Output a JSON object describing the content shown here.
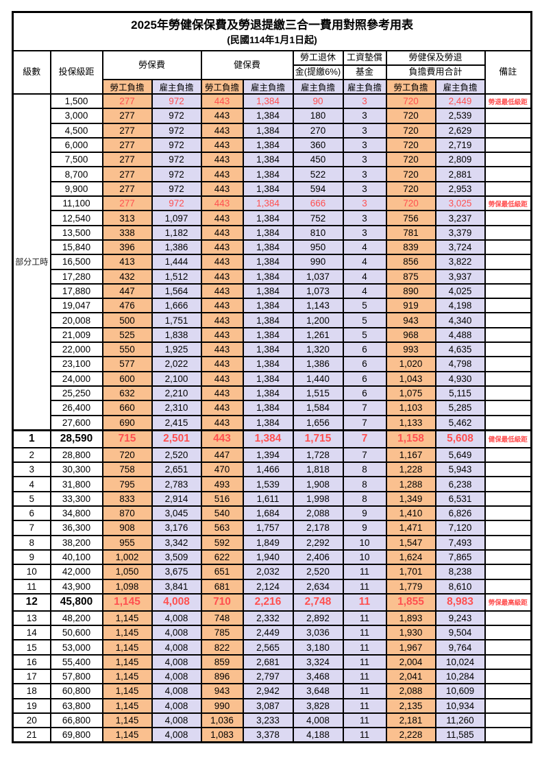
{
  "title": "2025年勞健保保費及勞退提繳三合一費用對照參考用表",
  "subtitle": "(民國114年1月1日起)",
  "header": {
    "level": "級數",
    "bracket": "投保級距",
    "labor_fee": "勞保費",
    "health_fee": "健保費",
    "pension_line1": "勞工退休",
    "pension_line2": "金(提繳6%)",
    "wage_fund_line1": "工資墊償",
    "wage_fund_line2": "基金",
    "total_line1": "勞健保及勞退",
    "total_line2": "負擔費用合計",
    "remark": "備註",
    "worker": "勞工負擔",
    "employer": "雇主負擔"
  },
  "part_time_label": "部分工時",
  "colors": {
    "worker_fill": "#FAC08F",
    "employer_fill": "#DCD9F2",
    "highlight_text": "#FF5050",
    "border": "#000000"
  },
  "rows": [
    {
      "level": "",
      "bracket": "1,500",
      "lw": "277",
      "le": "972",
      "hw": "443",
      "he": "1,384",
      "pe": "90",
      "wf": "3",
      "tw": "720",
      "te": "2,449",
      "remark": "勞退最低級距",
      "red": true,
      "bold": false
    },
    {
      "level": "",
      "bracket": "3,000",
      "lw": "277",
      "le": "972",
      "hw": "443",
      "he": "1,384",
      "pe": "180",
      "wf": "3",
      "tw": "720",
      "te": "2,539",
      "remark": "",
      "red": false,
      "bold": false
    },
    {
      "level": "",
      "bracket": "4,500",
      "lw": "277",
      "le": "972",
      "hw": "443",
      "he": "1,384",
      "pe": "270",
      "wf": "3",
      "tw": "720",
      "te": "2,629",
      "remark": "",
      "red": false,
      "bold": false
    },
    {
      "level": "",
      "bracket": "6,000",
      "lw": "277",
      "le": "972",
      "hw": "443",
      "he": "1,384",
      "pe": "360",
      "wf": "3",
      "tw": "720",
      "te": "2,719",
      "remark": "",
      "red": false,
      "bold": false
    },
    {
      "level": "",
      "bracket": "7,500",
      "lw": "277",
      "le": "972",
      "hw": "443",
      "he": "1,384",
      "pe": "450",
      "wf": "3",
      "tw": "720",
      "te": "2,809",
      "remark": "",
      "red": false,
      "bold": false
    },
    {
      "level": "",
      "bracket": "8,700",
      "lw": "277",
      "le": "972",
      "hw": "443",
      "he": "1,384",
      "pe": "522",
      "wf": "3",
      "tw": "720",
      "te": "2,881",
      "remark": "",
      "red": false,
      "bold": false
    },
    {
      "level": "",
      "bracket": "9,900",
      "lw": "277",
      "le": "972",
      "hw": "443",
      "he": "1,384",
      "pe": "594",
      "wf": "3",
      "tw": "720",
      "te": "2,953",
      "remark": "",
      "red": false,
      "bold": false
    },
    {
      "level": "",
      "bracket": "11,100",
      "lw": "277",
      "le": "972",
      "hw": "443",
      "he": "1,384",
      "pe": "666",
      "wf": "3",
      "tw": "720",
      "te": "3,025",
      "remark": "勞保最低級距",
      "red": true,
      "bold": false
    },
    {
      "level": "",
      "bracket": "12,540",
      "lw": "313",
      "le": "1,097",
      "hw": "443",
      "he": "1,384",
      "pe": "752",
      "wf": "3",
      "tw": "756",
      "te": "3,237",
      "remark": "",
      "red": false,
      "bold": false
    },
    {
      "level": "",
      "bracket": "13,500",
      "lw": "338",
      "le": "1,182",
      "hw": "443",
      "he": "1,384",
      "pe": "810",
      "wf": "3",
      "tw": "781",
      "te": "3,379",
      "remark": "",
      "red": false,
      "bold": false
    },
    {
      "level": "",
      "bracket": "15,840",
      "lw": "396",
      "le": "1,386",
      "hw": "443",
      "he": "1,384",
      "pe": "950",
      "wf": "4",
      "tw": "839",
      "te": "3,724",
      "remark": "",
      "red": false,
      "bold": false
    },
    {
      "level": "",
      "bracket": "16,500",
      "lw": "413",
      "le": "1,444",
      "hw": "443",
      "he": "1,384",
      "pe": "990",
      "wf": "4",
      "tw": "856",
      "te": "3,822",
      "remark": "",
      "red": false,
      "bold": false
    },
    {
      "level": "",
      "bracket": "17,280",
      "lw": "432",
      "le": "1,512",
      "hw": "443",
      "he": "1,384",
      "pe": "1,037",
      "wf": "4",
      "tw": "875",
      "te": "3,937",
      "remark": "",
      "red": false,
      "bold": false
    },
    {
      "level": "",
      "bracket": "17,880",
      "lw": "447",
      "le": "1,564",
      "hw": "443",
      "he": "1,384",
      "pe": "1,073",
      "wf": "4",
      "tw": "890",
      "te": "4,025",
      "remark": "",
      "red": false,
      "bold": false
    },
    {
      "level": "",
      "bracket": "19,047",
      "lw": "476",
      "le": "1,666",
      "hw": "443",
      "he": "1,384",
      "pe": "1,143",
      "wf": "5",
      "tw": "919",
      "te": "4,198",
      "remark": "",
      "red": false,
      "bold": false
    },
    {
      "level": "",
      "bracket": "20,008",
      "lw": "500",
      "le": "1,751",
      "hw": "443",
      "he": "1,384",
      "pe": "1,200",
      "wf": "5",
      "tw": "943",
      "te": "4,340",
      "remark": "",
      "red": false,
      "bold": false
    },
    {
      "level": "",
      "bracket": "21,009",
      "lw": "525",
      "le": "1,838",
      "hw": "443",
      "he": "1,384",
      "pe": "1,261",
      "wf": "5",
      "tw": "968",
      "te": "4,488",
      "remark": "",
      "red": false,
      "bold": false
    },
    {
      "level": "",
      "bracket": "22,000",
      "lw": "550",
      "le": "1,925",
      "hw": "443",
      "he": "1,384",
      "pe": "1,320",
      "wf": "6",
      "tw": "993",
      "te": "4,635",
      "remark": "",
      "red": false,
      "bold": false
    },
    {
      "level": "",
      "bracket": "23,100",
      "lw": "577",
      "le": "2,022",
      "hw": "443",
      "he": "1,384",
      "pe": "1,386",
      "wf": "6",
      "tw": "1,020",
      "te": "4,798",
      "remark": "",
      "red": false,
      "bold": false
    },
    {
      "level": "",
      "bracket": "24,000",
      "lw": "600",
      "le": "2,100",
      "hw": "443",
      "he": "1,384",
      "pe": "1,440",
      "wf": "6",
      "tw": "1,043",
      "te": "4,930",
      "remark": "",
      "red": false,
      "bold": false
    },
    {
      "level": "",
      "bracket": "25,250",
      "lw": "632",
      "le": "2,210",
      "hw": "443",
      "he": "1,384",
      "pe": "1,515",
      "wf": "6",
      "tw": "1,075",
      "te": "5,115",
      "remark": "",
      "red": false,
      "bold": false
    },
    {
      "level": "",
      "bracket": "26,400",
      "lw": "660",
      "le": "2,310",
      "hw": "443",
      "he": "1,384",
      "pe": "1,584",
      "wf": "7",
      "tw": "1,103",
      "te": "5,285",
      "remark": "",
      "red": false,
      "bold": false
    },
    {
      "level": "",
      "bracket": "27,600",
      "lw": "690",
      "le": "2,415",
      "hw": "443",
      "he": "1,384",
      "pe": "1,656",
      "wf": "7",
      "tw": "1,133",
      "te": "5,462",
      "remark": "",
      "red": false,
      "bold": false
    },
    {
      "level": "1",
      "bracket": "28,590",
      "lw": "715",
      "le": "2,501",
      "hw": "443",
      "he": "1,384",
      "pe": "1,715",
      "wf": "7",
      "tw": "1,158",
      "te": "5,608",
      "remark": "健保最低級距",
      "red": true,
      "bold": true
    },
    {
      "level": "2",
      "bracket": "28,800",
      "lw": "720",
      "le": "2,520",
      "hw": "447",
      "he": "1,394",
      "pe": "1,728",
      "wf": "7",
      "tw": "1,167",
      "te": "5,649",
      "remark": "",
      "red": false,
      "bold": false
    },
    {
      "level": "3",
      "bracket": "30,300",
      "lw": "758",
      "le": "2,651",
      "hw": "470",
      "he": "1,466",
      "pe": "1,818",
      "wf": "8",
      "tw": "1,228",
      "te": "5,943",
      "remark": "",
      "red": false,
      "bold": false
    },
    {
      "level": "4",
      "bracket": "31,800",
      "lw": "795",
      "le": "2,783",
      "hw": "493",
      "he": "1,539",
      "pe": "1,908",
      "wf": "8",
      "tw": "1,288",
      "te": "6,238",
      "remark": "",
      "red": false,
      "bold": false
    },
    {
      "level": "5",
      "bracket": "33,300",
      "lw": "833",
      "le": "2,914",
      "hw": "516",
      "he": "1,611",
      "pe": "1,998",
      "wf": "8",
      "tw": "1,349",
      "te": "6,531",
      "remark": "",
      "red": false,
      "bold": false
    },
    {
      "level": "6",
      "bracket": "34,800",
      "lw": "870",
      "le": "3,045",
      "hw": "540",
      "he": "1,684",
      "pe": "2,088",
      "wf": "9",
      "tw": "1,410",
      "te": "6,826",
      "remark": "",
      "red": false,
      "bold": false
    },
    {
      "level": "7",
      "bracket": "36,300",
      "lw": "908",
      "le": "3,176",
      "hw": "563",
      "he": "1,757",
      "pe": "2,178",
      "wf": "9",
      "tw": "1,471",
      "te": "7,120",
      "remark": "",
      "red": false,
      "bold": false
    },
    {
      "level": "8",
      "bracket": "38,200",
      "lw": "955",
      "le": "3,342",
      "hw": "592",
      "he": "1,849",
      "pe": "2,292",
      "wf": "10",
      "tw": "1,547",
      "te": "7,493",
      "remark": "",
      "red": false,
      "bold": false
    },
    {
      "level": "9",
      "bracket": "40,100",
      "lw": "1,002",
      "le": "3,509",
      "hw": "622",
      "he": "1,940",
      "pe": "2,406",
      "wf": "10",
      "tw": "1,624",
      "te": "7,865",
      "remark": "",
      "red": false,
      "bold": false
    },
    {
      "level": "10",
      "bracket": "42,000",
      "lw": "1,050",
      "le": "3,675",
      "hw": "651",
      "he": "2,032",
      "pe": "2,520",
      "wf": "11",
      "tw": "1,701",
      "te": "8,238",
      "remark": "",
      "red": false,
      "bold": false
    },
    {
      "level": "11",
      "bracket": "43,900",
      "lw": "1,098",
      "le": "3,841",
      "hw": "681",
      "he": "2,124",
      "pe": "2,634",
      "wf": "11",
      "tw": "1,779",
      "te": "8,610",
      "remark": "",
      "red": false,
      "bold": false
    },
    {
      "level": "12",
      "bracket": "45,800",
      "lw": "1,145",
      "le": "4,008",
      "hw": "710",
      "he": "2,216",
      "pe": "2,748",
      "wf": "11",
      "tw": "1,855",
      "te": "8,983",
      "remark": "勞保最高級距",
      "red": true,
      "bold": true
    },
    {
      "level": "13",
      "bracket": "48,200",
      "lw": "1,145",
      "le": "4,008",
      "hw": "748",
      "he": "2,332",
      "pe": "2,892",
      "wf": "11",
      "tw": "1,893",
      "te": "9,243",
      "remark": "",
      "red": false,
      "bold": false
    },
    {
      "level": "14",
      "bracket": "50,600",
      "lw": "1,145",
      "le": "4,008",
      "hw": "785",
      "he": "2,449",
      "pe": "3,036",
      "wf": "11",
      "tw": "1,930",
      "te": "9,504",
      "remark": "",
      "red": false,
      "bold": false
    },
    {
      "level": "15",
      "bracket": "53,000",
      "lw": "1,145",
      "le": "4,008",
      "hw": "822",
      "he": "2,565",
      "pe": "3,180",
      "wf": "11",
      "tw": "1,967",
      "te": "9,764",
      "remark": "",
      "red": false,
      "bold": false
    },
    {
      "level": "16",
      "bracket": "55,400",
      "lw": "1,145",
      "le": "4,008",
      "hw": "859",
      "he": "2,681",
      "pe": "3,324",
      "wf": "11",
      "tw": "2,004",
      "te": "10,024",
      "remark": "",
      "red": false,
      "bold": false
    },
    {
      "level": "17",
      "bracket": "57,800",
      "lw": "1,145",
      "le": "4,008",
      "hw": "896",
      "he": "2,797",
      "pe": "3,468",
      "wf": "11",
      "tw": "2,041",
      "te": "10,284",
      "remark": "",
      "red": false,
      "bold": false
    },
    {
      "level": "18",
      "bracket": "60,800",
      "lw": "1,145",
      "le": "4,008",
      "hw": "943",
      "he": "2,942",
      "pe": "3,648",
      "wf": "11",
      "tw": "2,088",
      "te": "10,609",
      "remark": "",
      "red": false,
      "bold": false
    },
    {
      "level": "19",
      "bracket": "63,800",
      "lw": "1,145",
      "le": "4,008",
      "hw": "990",
      "he": "3,087",
      "pe": "3,828",
      "wf": "11",
      "tw": "2,135",
      "te": "10,934",
      "remark": "",
      "red": false,
      "bold": false
    },
    {
      "level": "20",
      "bracket": "66,800",
      "lw": "1,145",
      "le": "4,008",
      "hw": "1,036",
      "he": "3,233",
      "pe": "4,008",
      "wf": "11",
      "tw": "2,181",
      "te": "11,260",
      "remark": "",
      "red": false,
      "bold": false
    },
    {
      "level": "21",
      "bracket": "69,800",
      "lw": "1,145",
      "le": "4,008",
      "hw": "1,083",
      "he": "3,378",
      "pe": "4,188",
      "wf": "11",
      "tw": "2,228",
      "te": "11,585",
      "remark": "",
      "red": false,
      "bold": false
    }
  ]
}
